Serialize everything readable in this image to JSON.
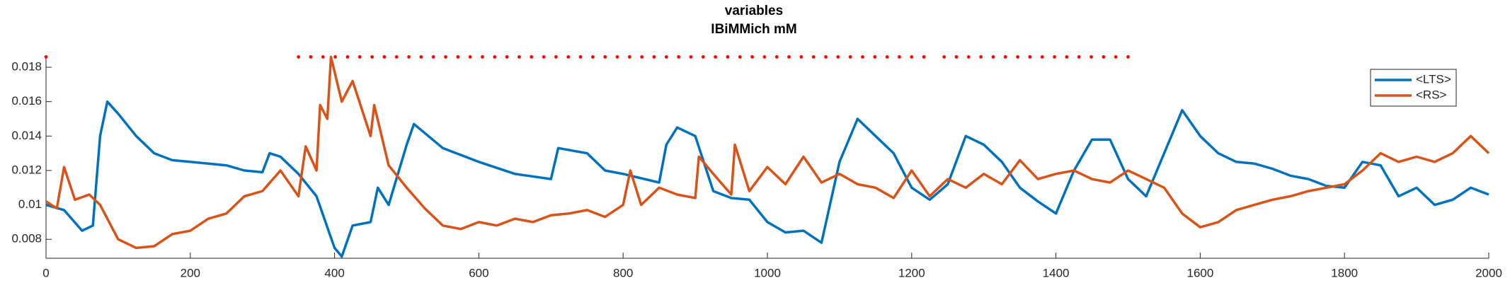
{
  "chart_data": {
    "type": "line",
    "title": "variables",
    "subtitle": "IBiMMich mM",
    "xlim": [
      0,
      2000
    ],
    "xticks": [
      0,
      200,
      400,
      600,
      800,
      1000,
      1200,
      1400,
      1600,
      1800,
      2000
    ],
    "ylim": [
      0.0069,
      0.0187
    ],
    "yticks": [
      0.008,
      0.01,
      0.012,
      0.014,
      0.016,
      0.018
    ],
    "legend": "upper-right",
    "series": [
      {
        "name": "<LTS>",
        "color": "#0072bd",
        "x": [
          0,
          25,
          50,
          65,
          75,
          85,
          100,
          125,
          150,
          175,
          200,
          225,
          250,
          275,
          300,
          310,
          325,
          350,
          375,
          400,
          410,
          425,
          450,
          460,
          475,
          500,
          510,
          550,
          600,
          650,
          700,
          710,
          750,
          775,
          800,
          850,
          860,
          875,
          900,
          925,
          950,
          975,
          1000,
          1025,
          1050,
          1075,
          1100,
          1125,
          1150,
          1175,
          1200,
          1225,
          1250,
          1275,
          1300,
          1325,
          1350,
          1375,
          1400,
          1425,
          1450,
          1475,
          1500,
          1525,
          1550,
          1575,
          1600,
          1625,
          1650,
          1675,
          1700,
          1725,
          1750,
          1775,
          1800,
          1825,
          1850,
          1875,
          1900,
          1925,
          1950,
          1975,
          2000
        ],
        "values": [
          0.01,
          0.0097,
          0.0085,
          0.0088,
          0.014,
          0.016,
          0.0153,
          0.014,
          0.013,
          0.0126,
          0.0125,
          0.0124,
          0.0123,
          0.012,
          0.0119,
          0.013,
          0.0128,
          0.0118,
          0.0105,
          0.0075,
          0.007,
          0.0088,
          0.009,
          0.011,
          0.01,
          0.0135,
          0.0147,
          0.0133,
          0.0125,
          0.0118,
          0.0115,
          0.0133,
          0.013,
          0.012,
          0.0118,
          0.0113,
          0.0135,
          0.0145,
          0.014,
          0.0108,
          0.0104,
          0.0103,
          0.009,
          0.0084,
          0.0085,
          0.0078,
          0.0125,
          0.015,
          0.014,
          0.013,
          0.011,
          0.0103,
          0.0112,
          0.014,
          0.0135,
          0.0125,
          0.011,
          0.0102,
          0.0095,
          0.012,
          0.0138,
          0.0138,
          0.0115,
          0.0105,
          0.013,
          0.0155,
          0.014,
          0.013,
          0.0125,
          0.0124,
          0.0121,
          0.0117,
          0.0115,
          0.0111,
          0.011,
          0.0125,
          0.0123,
          0.0105,
          0.011,
          0.01,
          0.0103,
          0.011,
          0.0106
        ]
      },
      {
        "name": "<RS>",
        "color": "#d95319",
        "x": [
          0,
          15,
          25,
          40,
          60,
          75,
          100,
          125,
          150,
          175,
          200,
          225,
          250,
          275,
          300,
          325,
          350,
          360,
          375,
          380,
          390,
          395,
          410,
          425,
          450,
          455,
          475,
          500,
          525,
          550,
          575,
          600,
          625,
          650,
          675,
          700,
          725,
          750,
          775,
          800,
          810,
          825,
          850,
          875,
          900,
          905,
          925,
          950,
          955,
          975,
          1000,
          1025,
          1050,
          1075,
          1100,
          1125,
          1150,
          1175,
          1200,
          1225,
          1250,
          1275,
          1300,
          1325,
          1350,
          1375,
          1400,
          1425,
          1450,
          1475,
          1500,
          1525,
          1550,
          1575,
          1600,
          1625,
          1650,
          1675,
          1700,
          1725,
          1750,
          1775,
          1800,
          1825,
          1850,
          1875,
          1900,
          1925,
          1950,
          1975,
          2000
        ],
        "values": [
          0.0102,
          0.0098,
          0.0122,
          0.0103,
          0.0106,
          0.01,
          0.008,
          0.0075,
          0.0076,
          0.0083,
          0.0085,
          0.0092,
          0.0095,
          0.0105,
          0.0108,
          0.012,
          0.0105,
          0.0134,
          0.012,
          0.0158,
          0.015,
          0.0186,
          0.016,
          0.0172,
          0.014,
          0.0158,
          0.0123,
          0.011,
          0.0098,
          0.0088,
          0.0086,
          0.009,
          0.0088,
          0.0092,
          0.009,
          0.0094,
          0.0095,
          0.0097,
          0.0093,
          0.01,
          0.012,
          0.01,
          0.011,
          0.0106,
          0.0104,
          0.0128,
          0.0118,
          0.0106,
          0.0135,
          0.0108,
          0.0122,
          0.0112,
          0.0128,
          0.0113,
          0.0118,
          0.0112,
          0.011,
          0.0104,
          0.012,
          0.0105,
          0.0115,
          0.011,
          0.0118,
          0.0112,
          0.0126,
          0.0115,
          0.0118,
          0.012,
          0.0115,
          0.0113,
          0.012,
          0.0115,
          0.011,
          0.0095,
          0.0087,
          0.009,
          0.0097,
          0.01,
          0.0103,
          0.0105,
          0.0108,
          0.011,
          0.0112,
          0.012,
          0.013,
          0.0125,
          0.0128,
          0.0125,
          0.013,
          0.014,
          0.013
        ]
      }
    ],
    "markers": {
      "color": "#ff0000",
      "y": 0.0186,
      "x": [
        0,
        350,
        367,
        384,
        401,
        418,
        435,
        452,
        469,
        486,
        503,
        520,
        537,
        554,
        571,
        588,
        605,
        622,
        639,
        656,
        673,
        690,
        707,
        724,
        741,
        758,
        775,
        792,
        809,
        826,
        843,
        860,
        877,
        894,
        911,
        928,
        945,
        962,
        979,
        996,
        1013,
        1030,
        1047,
        1064,
        1081,
        1098,
        1115,
        1132,
        1149,
        1166,
        1183,
        1200,
        1217,
        1245,
        1262,
        1279,
        1296,
        1313,
        1330,
        1347,
        1364,
        1381,
        1398,
        1415,
        1432,
        1449,
        1466,
        1483,
        1500
      ]
    }
  }
}
